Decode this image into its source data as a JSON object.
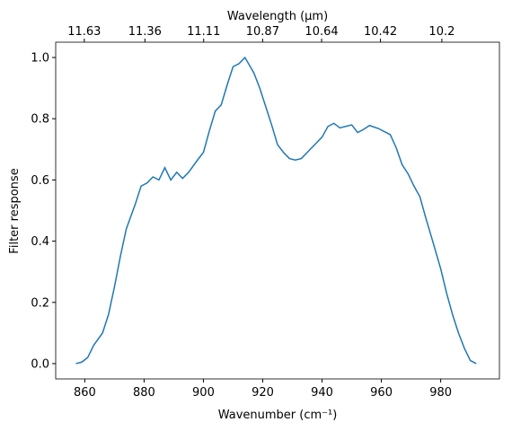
{
  "chart_data": {
    "type": "line",
    "xlabel": "Wavenumber (cm⁻¹)",
    "ylabel": "Filter response",
    "x2label": "Wavelength (μm)",
    "x": [
      857,
      859,
      861,
      863,
      866,
      868,
      870,
      872,
      874,
      877,
      879,
      881,
      883,
      885,
      887,
      889,
      891,
      893,
      895,
      898,
      900,
      902,
      904,
      906,
      908,
      910,
      912,
      914,
      917,
      919,
      921,
      923,
      925,
      927,
      929,
      931,
      933,
      935,
      938,
      940,
      942,
      944,
      946,
      948,
      950,
      952,
      954,
      956,
      959,
      961,
      963,
      965,
      967,
      969,
      971,
      973,
      975,
      977,
      980,
      982,
      984,
      986,
      988,
      990,
      992
    ],
    "series": [
      {
        "name": "Filter response",
        "color": "#1f77b4",
        "values": [
          0,
          0.005,
          0.02,
          0.06,
          0.1,
          0.16,
          0.25,
          0.35,
          0.44,
          0.52,
          0.58,
          0.59,
          0.61,
          0.6,
          0.64,
          0.6,
          0.625,
          0.605,
          0.625,
          0.665,
          0.69,
          0.76,
          0.825,
          0.845,
          0.91,
          0.97,
          0.98,
          1.0,
          0.95,
          0.9,
          0.84,
          0.78,
          0.715,
          0.69,
          0.67,
          0.665,
          0.67,
          0.69,
          0.72,
          0.74,
          0.775,
          0.785,
          0.77,
          0.775,
          0.78,
          0.755,
          0.765,
          0.778,
          0.768,
          0.758,
          0.748,
          0.705,
          0.65,
          0.62,
          0.58,
          0.545,
          0.475,
          0.41,
          0.31,
          0.23,
          0.16,
          0.1,
          0.05,
          0.01,
          0
        ]
      }
    ],
    "xlim": [
      850.2,
      999.8
    ],
    "ylim": [
      -0.05,
      1.05
    ],
    "xticks": [
      860,
      880,
      900,
      920,
      940,
      960,
      980
    ],
    "yticks": [
      {
        "value": 0,
        "label": "0.0"
      },
      0.2,
      0.4,
      0.6,
      0.8,
      {
        "value": 1,
        "label": "1.0"
      }
    ],
    "x2ticks": [
      11.63,
      11.36,
      11.11,
      10.87,
      10.64,
      10.42,
      10.2
    ]
  }
}
